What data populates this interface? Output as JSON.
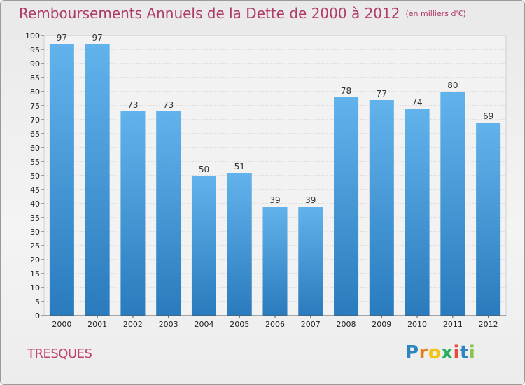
{
  "chart_data": {
    "type": "bar",
    "title": "Remboursements Annuels de la Dette de 2000 à 2012",
    "subtitle": "(en milliers d'€)",
    "categories": [
      "2000",
      "2001",
      "2002",
      "2003",
      "2004",
      "2005",
      "2006",
      "2007",
      "2008",
      "2009",
      "2010",
      "2011",
      "2012"
    ],
    "values": [
      97,
      97,
      73,
      73,
      50,
      51,
      39,
      39,
      78,
      77,
      74,
      80,
      69
    ],
    "ylim": [
      0,
      100
    ],
    "ytick_step": 5,
    "grid": true,
    "bar_color_top": "#62b3ec",
    "bar_color_bottom": "#2a7bbd"
  },
  "commune": "TRESQUES",
  "logo": {
    "letters": [
      "P",
      "r",
      "o",
      "x",
      "i",
      "t",
      "i"
    ],
    "colors": [
      "#2e86c1",
      "#e67e22",
      "#f1c40f",
      "#27ae60",
      "#e74c3c",
      "#2e86c1",
      "#8bc34a"
    ]
  }
}
